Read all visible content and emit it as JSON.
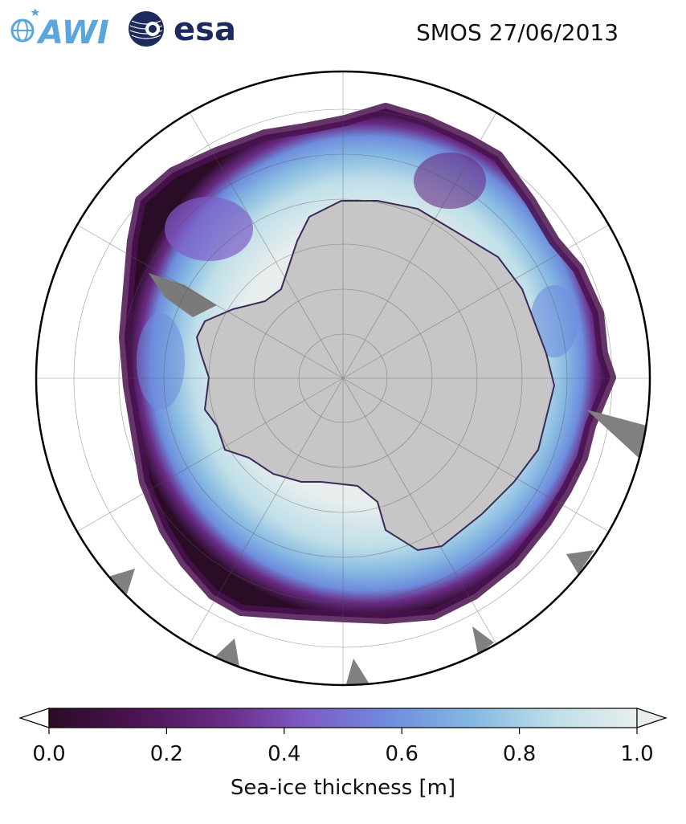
{
  "header": {
    "title": "SMOS 27/06/2013",
    "logos": [
      {
        "name": "awi-logo",
        "text": "AWI",
        "color": "#5aa6dc"
      },
      {
        "name": "esa-logo",
        "text": "esa",
        "color": "#1d2a5b"
      }
    ]
  },
  "map": {
    "projection": "south-polar-stereographic",
    "graticule": true,
    "land_color": "#c6c6c6",
    "coastline_ice_shelf_color": "#7a7a7a",
    "ocean_color": "#ffffff",
    "regions": [
      {
        "name": "antarctica-land",
        "kind": "land"
      },
      {
        "name": "sea-ice-extent",
        "kind": "sea-ice"
      }
    ]
  },
  "colorbar": {
    "label": "Sea-ice thickness [m]",
    "ticks": [
      "0.0",
      "0.2",
      "0.4",
      "0.6",
      "0.8",
      "1.0"
    ],
    "min": 0.0,
    "max": 1.0,
    "extend": "both",
    "colormap": [
      "#2a0c26",
      "#4a1250",
      "#6a2b86",
      "#7e5cc8",
      "#6e8ddd",
      "#85b8e2",
      "#bfdfe8",
      "#e8eeee"
    ]
  }
}
